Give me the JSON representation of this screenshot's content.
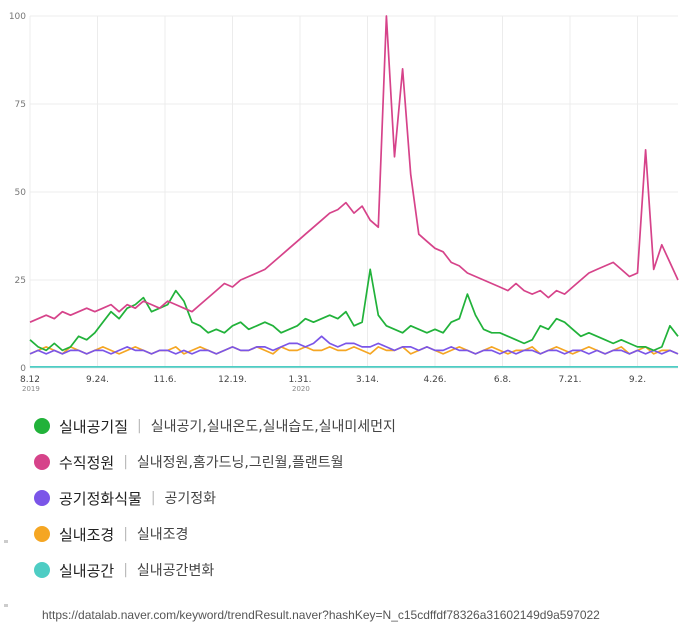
{
  "chart_data": {
    "type": "line",
    "yticks": [
      "0",
      "25",
      "50",
      "75",
      "100"
    ],
    "ylim": [
      0,
      100
    ],
    "xticks": [
      {
        "label": "8.12",
        "year": "2019"
      },
      {
        "label": "9.24.",
        "year": ""
      },
      {
        "label": "11.6.",
        "year": ""
      },
      {
        "label": "12.19.",
        "year": ""
      },
      {
        "label": "1.31.",
        "year": "2020"
      },
      {
        "label": "3.14.",
        "year": ""
      },
      {
        "label": "4.26.",
        "year": ""
      },
      {
        "label": "6.8.",
        "year": ""
      },
      {
        "label": "7.21.",
        "year": ""
      },
      {
        "label": "9.2.",
        "year": ""
      }
    ],
    "grid": true,
    "legend_placement": "bottom",
    "series": [
      {
        "name": "실내공기질",
        "color": "#21b23a",
        "values": [
          8,
          6,
          5,
          7,
          5,
          6,
          9,
          8,
          10,
          13,
          16,
          14,
          17,
          18,
          20,
          16,
          17,
          18,
          22,
          19,
          13,
          12,
          10,
          11,
          10,
          12,
          13,
          11,
          12,
          13,
          12,
          10,
          11,
          12,
          14,
          13,
          14,
          15,
          14,
          16,
          12,
          13,
          28,
          15,
          12,
          11,
          10,
          12,
          11,
          10,
          11,
          10,
          13,
          14,
          21,
          15,
          11,
          10,
          10,
          9,
          8,
          7,
          8,
          12,
          11,
          14,
          13,
          11,
          9,
          10,
          9,
          8,
          7,
          8,
          7,
          6,
          6,
          5,
          6,
          12,
          9
        ]
      },
      {
        "name": "수직정원",
        "color": "#d6438a",
        "values": [
          13,
          14,
          15,
          14,
          16,
          15,
          16,
          17,
          16,
          17,
          18,
          16,
          18,
          17,
          19,
          18,
          17,
          19,
          18,
          17,
          16,
          18,
          20,
          22,
          24,
          23,
          25,
          26,
          27,
          28,
          30,
          32,
          34,
          36,
          38,
          40,
          42,
          44,
          45,
          47,
          44,
          46,
          42,
          40,
          100,
          60,
          85,
          55,
          38,
          36,
          34,
          33,
          30,
          29,
          27,
          26,
          25,
          24,
          23,
          22,
          24,
          22,
          21,
          22,
          20,
          22,
          21,
          23,
          25,
          27,
          28,
          29,
          30,
          28,
          26,
          27,
          62,
          28,
          35,
          30,
          25
        ]
      },
      {
        "name": "공기정화식물",
        "color": "#7b55e8",
        "values": [
          4,
          5,
          4,
          5,
          4,
          5,
          5,
          4,
          5,
          5,
          4,
          5,
          6,
          5,
          5,
          4,
          5,
          5,
          4,
          5,
          4,
          5,
          5,
          4,
          5,
          6,
          5,
          5,
          6,
          6,
          5,
          6,
          7,
          7,
          6,
          7,
          9,
          7,
          6,
          7,
          7,
          6,
          6,
          7,
          6,
          5,
          6,
          6,
          5,
          6,
          5,
          5,
          6,
          5,
          5,
          4,
          5,
          5,
          4,
          5,
          4,
          5,
          5,
          4,
          5,
          5,
          4,
          5,
          5,
          4,
          5,
          4,
          5,
          5,
          4,
          5,
          4,
          5,
          4,
          5,
          4
        ]
      },
      {
        "name": "실내조경",
        "color": "#f5a623",
        "values": [
          4,
          5,
          6,
          5,
          4,
          6,
          5,
          4,
          5,
          6,
          5,
          4,
          5,
          6,
          5,
          4,
          5,
          5,
          6,
          4,
          5,
          6,
          5,
          4,
          5,
          6,
          5,
          5,
          6,
          5,
          4,
          6,
          5,
          5,
          6,
          5,
          5,
          6,
          5,
          5,
          6,
          5,
          4,
          6,
          5,
          5,
          6,
          4,
          5,
          6,
          5,
          4,
          5,
          6,
          5,
          4,
          5,
          6,
          5,
          4,
          5,
          5,
          6,
          4,
          5,
          6,
          5,
          4,
          5,
          6,
          5,
          4,
          5,
          6,
          4,
          5,
          6,
          4,
          5,
          5,
          4
        ]
      },
      {
        "name": "실내공간",
        "color": "#4ecdc4",
        "values": [
          0.3,
          0.3,
          0.3,
          0.3,
          0.3,
          0.3,
          0.3,
          0.3,
          0.3,
          0.3,
          0.3,
          0.3,
          0.3,
          0.3,
          0.3,
          0.3,
          0.3,
          0.3,
          0.3,
          0.3,
          0.3,
          0.3,
          0.3,
          0.3,
          0.3,
          0.3,
          0.3,
          0.3,
          0.3,
          0.3,
          0.3,
          0.3,
          0.3,
          0.3,
          0.3,
          0.3,
          0.3,
          0.3,
          0.3,
          0.3,
          0.3,
          0.3,
          0.3,
          0.3,
          0.3,
          0.3,
          0.3,
          0.3,
          0.3,
          0.3,
          0.3,
          0.3,
          0.3,
          0.3,
          0.3,
          0.3,
          0.3,
          0.3,
          0.3,
          0.3,
          0.3,
          0.3,
          0.3,
          0.3,
          0.3,
          0.3,
          0.3,
          0.3,
          0.3,
          0.3,
          0.3,
          0.3,
          0.3,
          0.3,
          0.3,
          0.3,
          0.3,
          0.3,
          0.3,
          0.3,
          0.3
        ]
      }
    ]
  },
  "legend": [
    {
      "name": "실내공기질",
      "keywords": "실내공기,실내온도,실내습도,실내미세먼지",
      "color": "#21b23a"
    },
    {
      "name": "수직정원",
      "keywords": "실내정원,홈가드닝,그린월,플랜트월",
      "color": "#d6438a"
    },
    {
      "name": "공기정화식물",
      "keywords": "공기정화",
      "color": "#7b55e8"
    },
    {
      "name": "실내조경",
      "keywords": "실내조경",
      "color": "#f5a623"
    },
    {
      "name": "실내공간",
      "keywords": "실내공간변화",
      "color": "#4ecdc4"
    }
  ],
  "separator": "|",
  "source_url": "https://datalab.naver.com/keyword/trendResult.naver?hashKey=N_c15cdffdf78326a31602149d9a597022"
}
